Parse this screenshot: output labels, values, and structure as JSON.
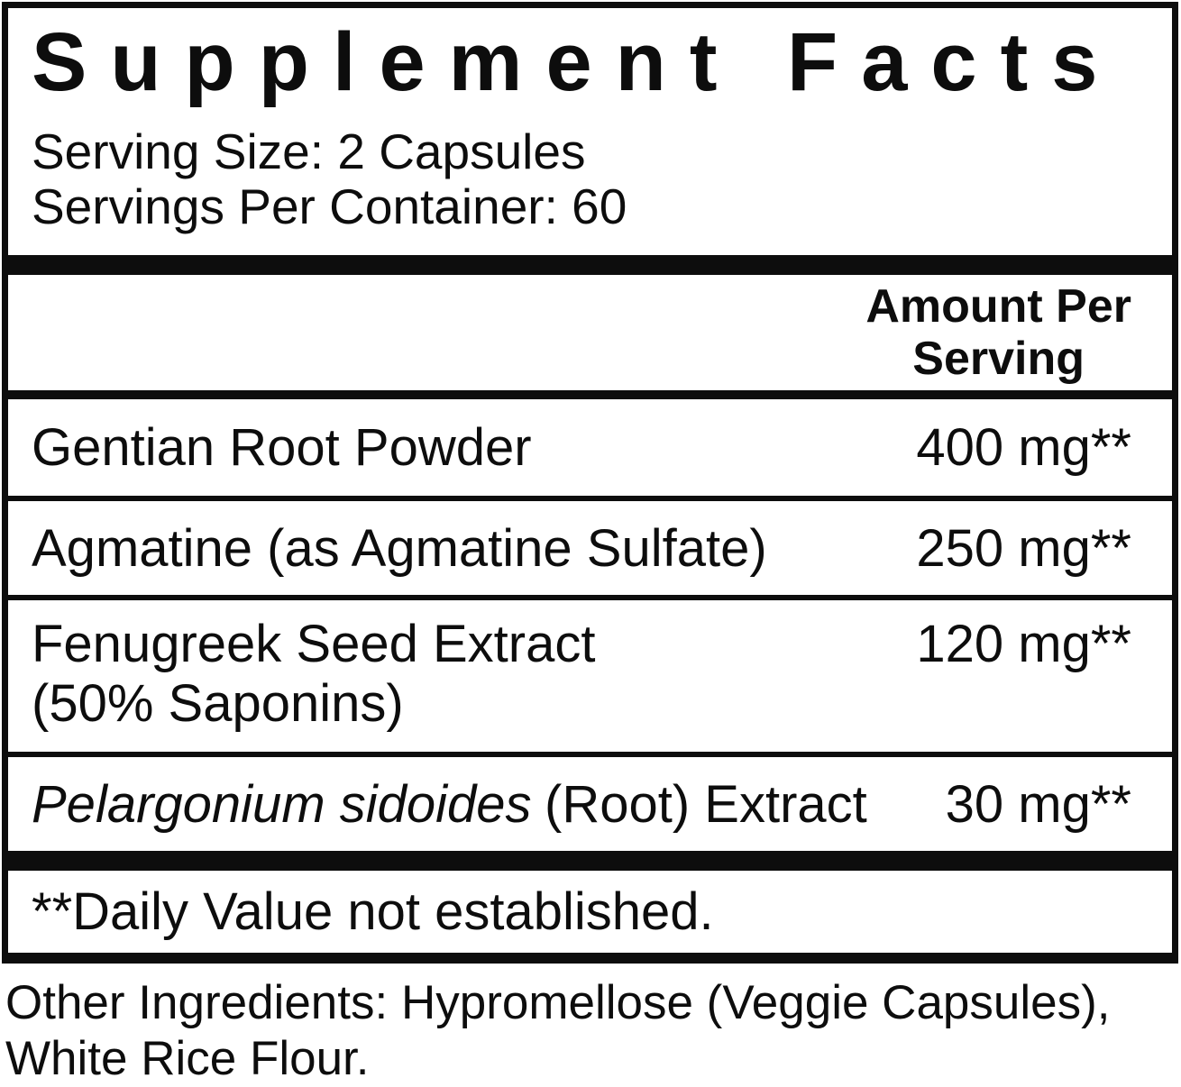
{
  "panel": {
    "title": "Supplement Facts",
    "serving_size": "Serving Size: 2 Capsules",
    "servings_per_container": "Servings Per Container: 60",
    "amount_header_line1": "Amount Per",
    "amount_header_line2": "Serving",
    "rows": [
      {
        "name": "Gentian Root Powder",
        "amount": "400 mg",
        "footnote_marker": "**"
      },
      {
        "name": "Agmatine (as Agmatine Sulfate)",
        "amount": "250 mg",
        "footnote_marker": "**"
      },
      {
        "name": "Fenugreek Seed Extract",
        "name_line2": "(50% Saponins)",
        "amount": "120 mg",
        "footnote_marker": "**"
      },
      {
        "name_latin": "Pelargonium sidoides",
        "name_rest": "(Root) Extract",
        "amount": "30 mg",
        "footnote_marker": "**"
      }
    ],
    "footnote": "**Daily Value not established.",
    "other_ingredients": "Other Ingredients: Hypromellose (Veggie Capsules), White Rice Flour."
  },
  "colors": {
    "ink": "#0d0d0d",
    "background": "#ffffff"
  }
}
